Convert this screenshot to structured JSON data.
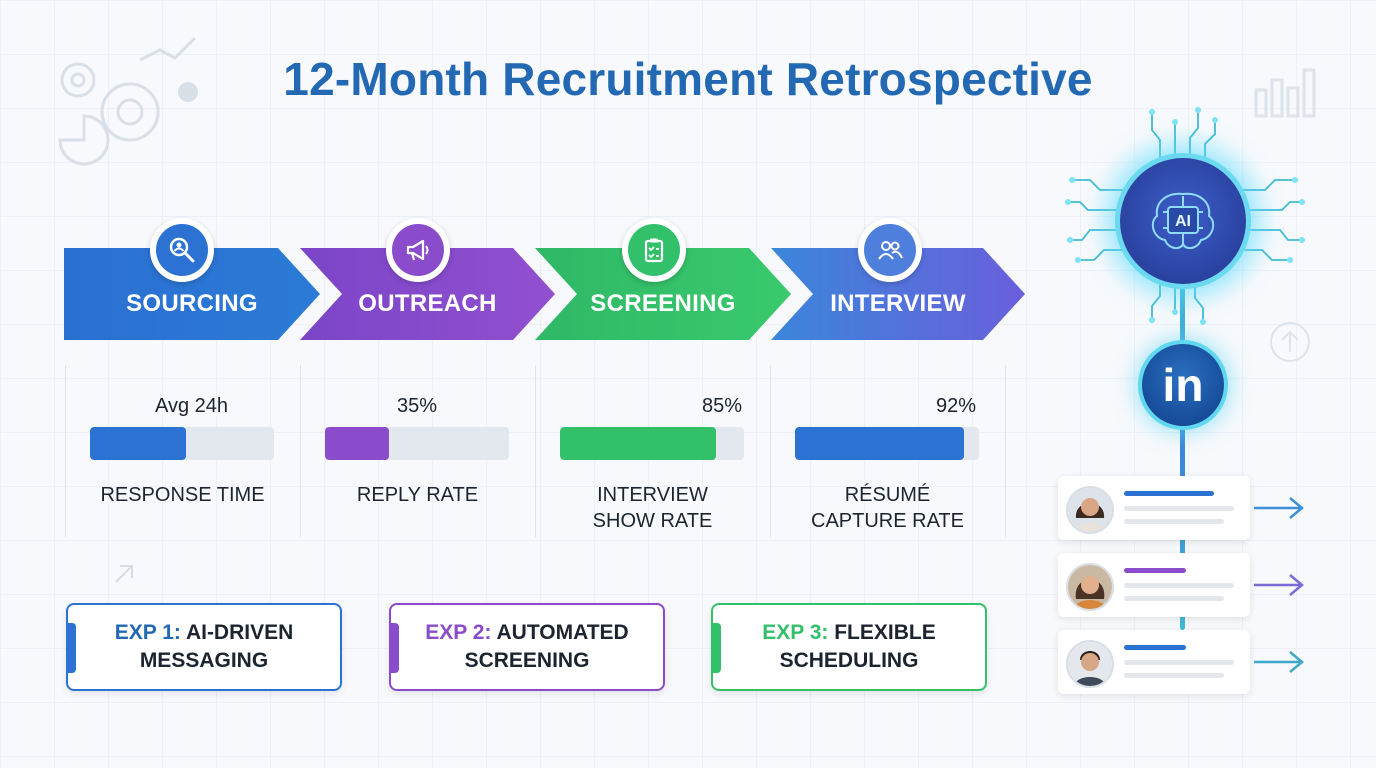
{
  "title": "12-Month Recruitment Retrospective",
  "stages": [
    {
      "label": "SOURCING",
      "icon": "magnifier-person-icon",
      "color_start": "#2b6fd1",
      "color_end": "#2b7bd6"
    },
    {
      "label": "OUTREACH",
      "icon": "megaphone-icon",
      "color_start": "#7b45c8",
      "color_end": "#9150cf"
    },
    {
      "label": "SCREENING",
      "icon": "clipboard-check-icon",
      "color_start": "#2fb866",
      "color_end": "#3ac96d"
    },
    {
      "label": "INTERVIEW",
      "icon": "people-icon",
      "color_start": "#3b86db",
      "color_end": "#6a5fdb"
    }
  ],
  "metrics": [
    {
      "value": "Avg 24h",
      "fraction": 0.52,
      "label_line1": "RESPONSE TIME",
      "label_line2": "",
      "color": "#2b72d3"
    },
    {
      "value": "35%",
      "fraction": 0.35,
      "label_line1": "REPLY RATE",
      "label_line2": "",
      "color": "#8a4ccb"
    },
    {
      "value": "85%",
      "fraction": 0.85,
      "label_line1": "INTERVIEW",
      "label_line2": "SHOW RATE",
      "color": "#33c06b"
    },
    {
      "value": "92%",
      "fraction": 0.92,
      "label_line1": "RÉSUMÉ",
      "label_line2": "CAPTURE RATE",
      "color": "#2b72d3"
    }
  ],
  "experiments": [
    {
      "prefix": "EXP 1:",
      "text_line1": "AI-DRIVEN",
      "text_line2": "MESSAGING",
      "color": "#2b72d3",
      "prefix_color": "#2368b3"
    },
    {
      "prefix": "EXP 2:",
      "text_line1": "AUTOMATED",
      "text_line2": "SCREENING",
      "color": "#8a4ccb",
      "prefix_color": "#8a4ccb"
    },
    {
      "prefix": "EXP 3:",
      "text_line1": "FLEXIBLE",
      "text_line2": "SCHEDULING",
      "color": "#33c06b",
      "prefix_color": "#33c06b"
    }
  ],
  "ai_hub": {
    "label": "AI",
    "icon": "ai-brain-chip-icon"
  },
  "linkedin": {
    "label": "in",
    "icon": "linkedin-icon"
  },
  "candidates": [
    {
      "avatar": "woman-avatar",
      "accent": "#2b72d3"
    },
    {
      "avatar": "woman-avatar",
      "accent": "#8a4ccb"
    },
    {
      "avatar": "man-avatar",
      "accent": "#2b72d3"
    }
  ]
}
